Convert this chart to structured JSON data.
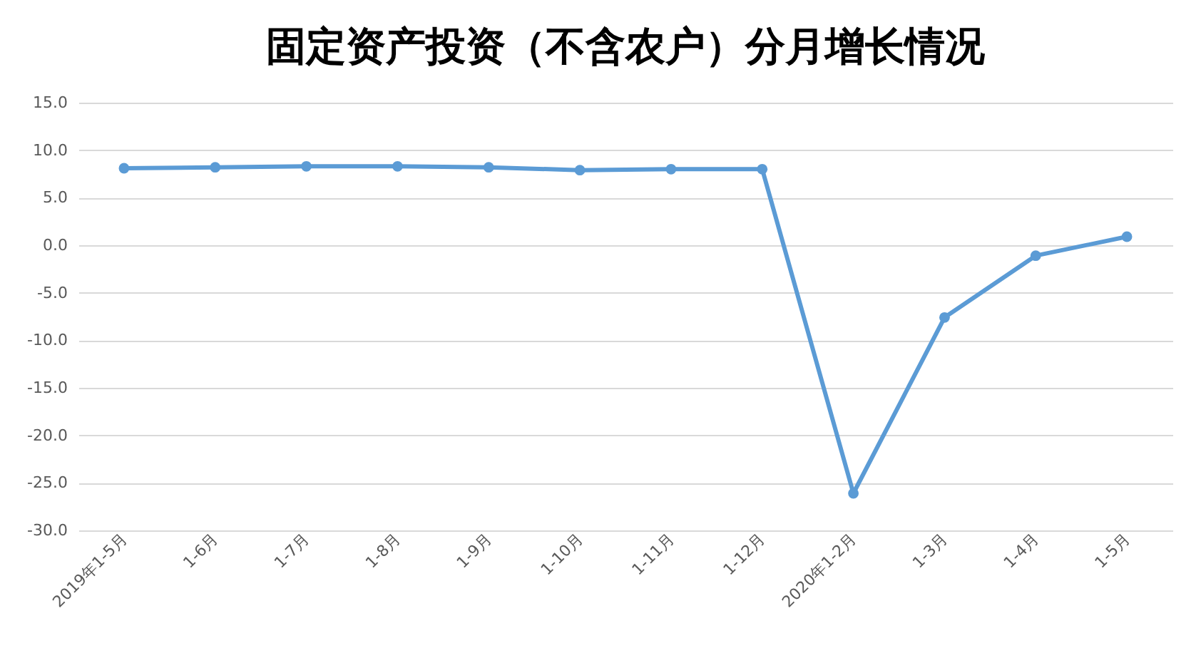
{
  "chart_data": {
    "type": "line",
    "title": "固定资产投资（不含农户）分月增长情况",
    "categories": [
      "2019年1-5月",
      "1-6月",
      "1-7月",
      "1-8月",
      "1-9月",
      "1-10月",
      "1-11月",
      "1-12月",
      "2020年1-2月",
      "1-3月",
      "1-4月",
      "1-5月"
    ],
    "series": [
      {
        "color": "#5b9bd5",
        "values": [
          8.1,
          8.2,
          8.3,
          8.3,
          8.2,
          7.9,
          8.0,
          8.0,
          -26.1,
          -7.6,
          -1.1,
          0.9
        ]
      }
    ],
    "ylim": [
      -30,
      15
    ],
    "yticks": [
      {
        "value": -30,
        "label": "-30.0"
      },
      {
        "value": -25,
        "label": "-25.0"
      },
      {
        "value": -20,
        "label": "-20.0"
      },
      {
        "value": -15,
        "label": "-15.0"
      },
      {
        "value": -10,
        "label": "-10.0"
      },
      {
        "value": -5,
        "label": "-5.0"
      },
      {
        "value": 0,
        "label": "0.0"
      },
      {
        "value": 5,
        "label": "5.0"
      },
      {
        "value": 10,
        "label": "10.0"
      },
      {
        "value": 15,
        "label": "15.0"
      }
    ],
    "grid": "y",
    "marker": "circle",
    "line_style": "solid"
  }
}
